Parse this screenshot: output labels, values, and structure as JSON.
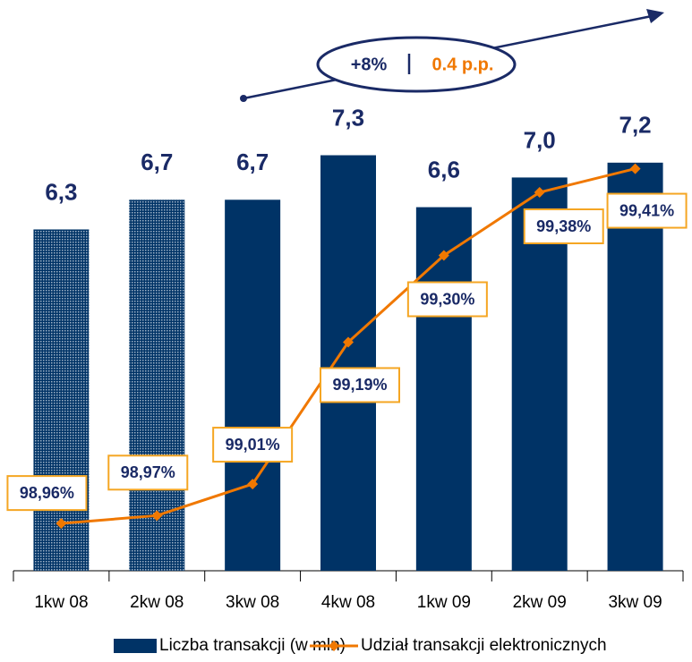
{
  "chart_data": {
    "type": "bar_line",
    "categories": [
      "1kw 08",
      "2kw 08",
      "3kw 08",
      "4kw 08",
      "1kw 09",
      "2kw 09",
      "3kw 09"
    ],
    "series": [
      {
        "name": "Liczba transakcji (w mln)",
        "color": "#003366",
        "type": "bar",
        "values": [
          6.3,
          6.7,
          6.7,
          7.3,
          6.6,
          7.0,
          7.2
        ],
        "value_labels": [
          "6,3",
          "6,7",
          "6,7",
          "7,3",
          "6,6",
          "7,0",
          "7,2"
        ],
        "styles": [
          "dotted",
          "dotted",
          "solid",
          "solid",
          "solid",
          "solid",
          "solid"
        ]
      },
      {
        "name": "Udział transakcji elektronicznych",
        "color": "#f07800",
        "type": "line",
        "axis": "y2",
        "values": [
          98.96,
          98.97,
          99.01,
          99.19,
          99.3,
          99.38,
          99.41
        ],
        "value_labels": [
          "98,96%",
          "98,97%",
          "99,01%",
          "99,19%",
          "99,30%",
          "99,38%",
          "99,41%"
        ]
      }
    ],
    "ylim": [
      1.7,
      8.5
    ],
    "y2lim": [
      98.9,
      99.54
    ],
    "annotations": [
      "+8%",
      "0.4 p.p."
    ],
    "legend": "bottom"
  }
}
